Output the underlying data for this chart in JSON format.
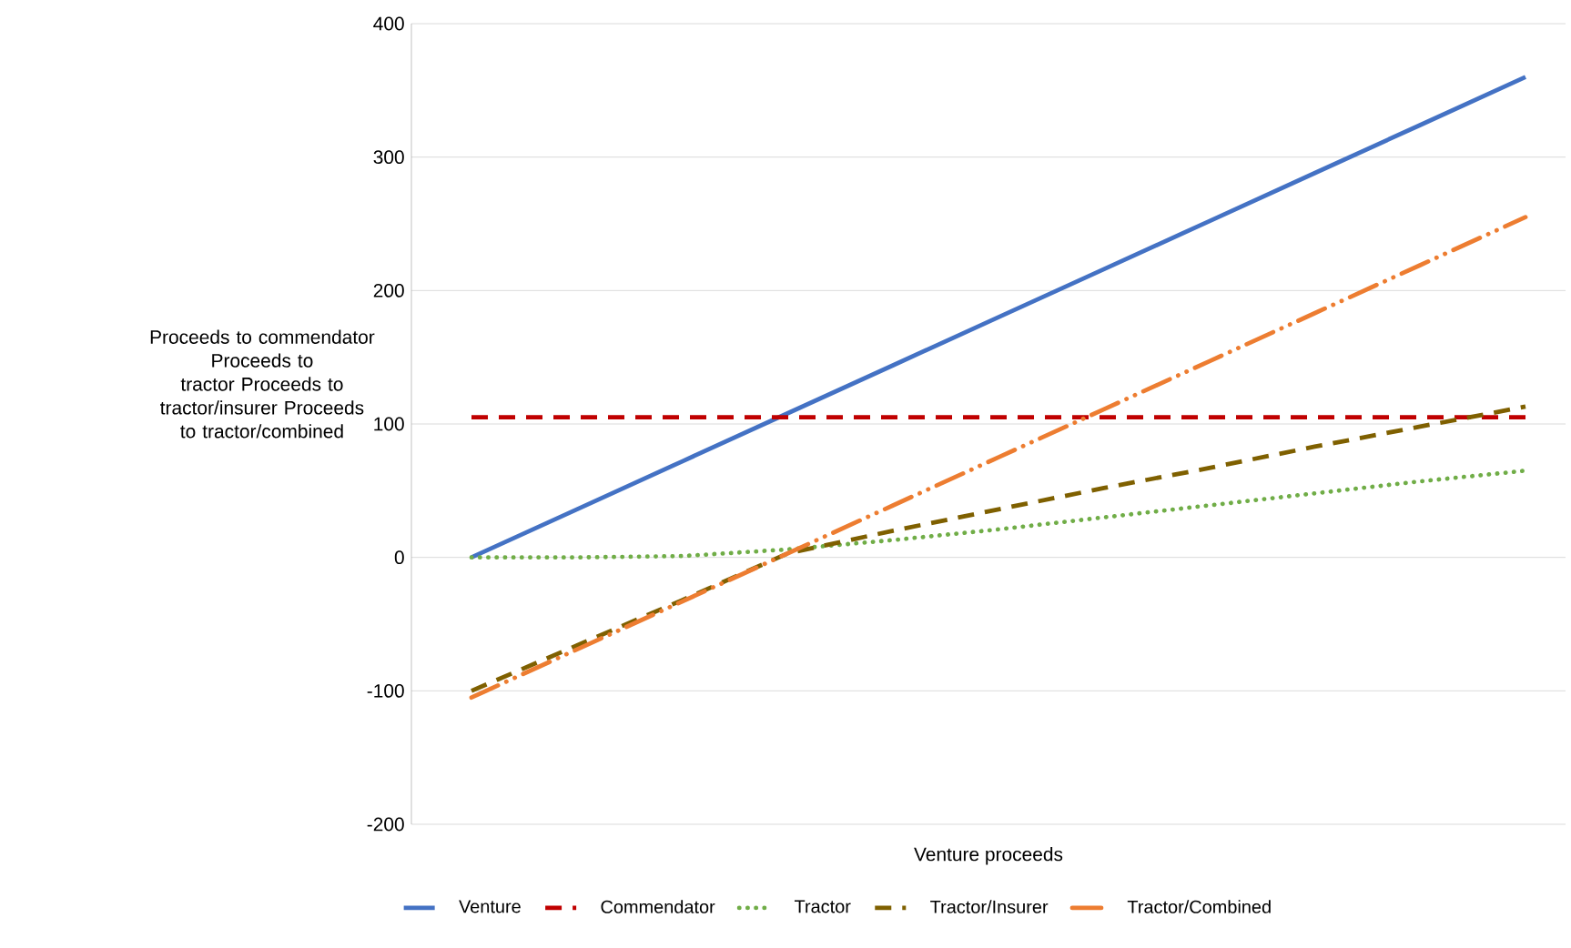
{
  "chart_data": {
    "type": "line",
    "xlabel": "Venture proceeds",
    "ylabel": "Proceeds to commendator Proceeds to tractor Proceeds to tractor/insurer Proceeds to tractor/combined",
    "categories": [
      null,
      null,
      null,
      null,
      null,
      null,
      null,
      null,
      null,
      null,
      null
    ],
    "series": [
      {
        "name": "Venture",
        "color": "#4472c4",
        "line_style": "solid",
        "values": [
          0,
          36,
          72,
          108,
          144,
          180,
          216,
          252,
          288,
          324,
          360
        ]
      },
      {
        "name": "Commendator",
        "color": "#c00000",
        "line_style": "dashed",
        "values": [
          105,
          105,
          105,
          105,
          105,
          105,
          105,
          105,
          105,
          105,
          105
        ]
      },
      {
        "name": "Tractor",
        "color": "#70ad47",
        "line_style": "dotted",
        "values": [
          0,
          0,
          1,
          6,
          13,
          21,
          30,
          39,
          48,
          57,
          65
        ]
      },
      {
        "name": "Tractor/Insurer",
        "color": "#7f6000",
        "line_style": "dashed",
        "values": [
          -100,
          -66,
          -32,
          3,
          20,
          36,
          52,
          67,
          83,
          98,
          113
        ]
      },
      {
        "name": "Tractor/Combined",
        "color": "#ed7d31",
        "line_style": "dashdotdotted",
        "values": [
          -105,
          -69,
          -33,
          3,
          39,
          75,
          111,
          147,
          183,
          219,
          255
        ]
      }
    ],
    "ylim": [
      -200,
      400
    ],
    "yticks": [
      -200,
      -100,
      0,
      100,
      200,
      300,
      400
    ],
    "grid": "y",
    "legend": "bottom",
    "marker": "none"
  }
}
